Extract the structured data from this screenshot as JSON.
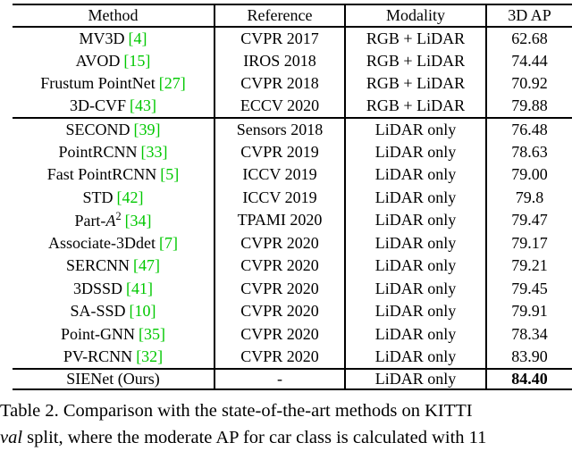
{
  "colors": {
    "citation_green": "#00C800",
    "text": "#000000",
    "background": "#ffffff"
  },
  "table": {
    "columns": [
      "Method",
      "Reference",
      "Modality",
      "3D AP"
    ],
    "rows": [
      {
        "method": "MV3D",
        "cite": "[4]",
        "reference": "CVPR 2017",
        "modality": "RGB + LiDAR",
        "ap": "62.68"
      },
      {
        "method": "AVOD",
        "cite": "[15]",
        "reference": "IROS 2018",
        "modality": "RGB + LiDAR",
        "ap": "74.44"
      },
      {
        "method": "Frustum PointNet",
        "cite": "[27]",
        "reference": "CVPR 2018",
        "modality": "RGB + LiDAR",
        "ap": "70.92"
      },
      {
        "method": "3D-CVF",
        "cite": "[43]",
        "reference": "ECCV 2020",
        "modality": "RGB + LiDAR",
        "ap": "79.88"
      },
      {
        "method": "SECOND",
        "cite": "[39]",
        "reference": "Sensors 2018",
        "modality": "LiDAR only",
        "ap": "76.48"
      },
      {
        "method": "PointRCNN",
        "cite": "[33]",
        "reference": "CVPR 2019",
        "modality": "LiDAR only",
        "ap": "78.63"
      },
      {
        "method": "Fast PointRCNN",
        "cite": "[5]",
        "reference": "ICCV 2019",
        "modality": "LiDAR only",
        "ap": "79.00"
      },
      {
        "method": "STD",
        "cite": "[42]",
        "reference": "ICCV 2019",
        "modality": "LiDAR only",
        "ap": "79.8"
      },
      {
        "method": "Part-",
        "method_var": "A",
        "method_sup": "2",
        "cite": "[34]",
        "reference": "TPAMI 2020",
        "modality": "LiDAR only",
        "ap": "79.47"
      },
      {
        "method": "Associate-3Ddet",
        "cite": "[7]",
        "reference": "CVPR 2020",
        "modality": "LiDAR only",
        "ap": "79.17"
      },
      {
        "method": "SERCNN",
        "cite": "[47]",
        "reference": "CVPR 2020",
        "modality": "LiDAR only",
        "ap": "79.21"
      },
      {
        "method": "3DSSD",
        "cite": "[41]",
        "reference": "CVPR 2020",
        "modality": "LiDAR only",
        "ap": "79.45"
      },
      {
        "method": "SA-SSD",
        "cite": "[10]",
        "reference": "CVPR 2020",
        "modality": "LiDAR only",
        "ap": "79.91"
      },
      {
        "method": "Point-GNN",
        "cite": "[35]",
        "reference": "CVPR 2020",
        "modality": "LiDAR only",
        "ap": "78.34"
      },
      {
        "method": "PV-RCNN",
        "cite": "[32]",
        "reference": "CVPR 2020",
        "modality": "LiDAR only",
        "ap": "83.90"
      },
      {
        "method": "SIENet (Ours)",
        "cite": "",
        "reference": "-",
        "modality": "LiDAR only",
        "ap": "84.40"
      }
    ]
  },
  "caption": {
    "line1": "Table 2. Comparison with the state-of-the-art methods on KITTI",
    "line2_italic": "val",
    "line2_rest": " split, where the moderate AP for car class is calculated with 11"
  }
}
